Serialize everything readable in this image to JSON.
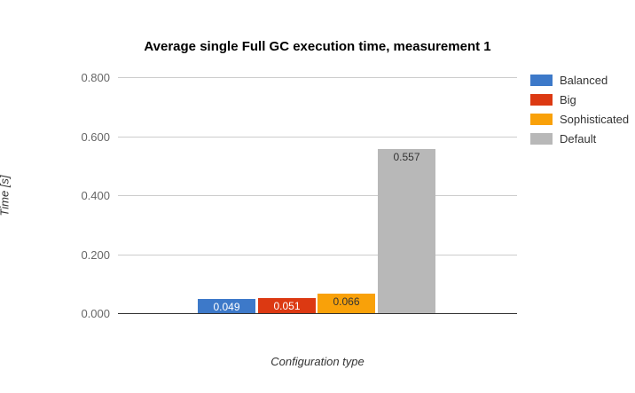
{
  "chart_data": {
    "type": "bar",
    "title": "Average single Full GC execution time, measurement 1",
    "xlabel": "Configuration type",
    "ylabel": "Time [s]",
    "ylim": [
      0,
      0.8
    ],
    "yticks": [
      0,
      0.2,
      0.4,
      0.6,
      0.8
    ],
    "ytick_labels": [
      "0.000",
      "0.200",
      "0.400",
      "0.600",
      "0.800"
    ],
    "grid": true,
    "grid_color": "#cccccc",
    "axis_line_color": "#333333",
    "tick_text_color": "#666666",
    "legend_position": "right",
    "categories": [
      "Configuration type"
    ],
    "series": [
      {
        "name": "Balanced",
        "value": 0.049,
        "label": "0.049",
        "color": "#3d79c9",
        "label_color": "#ffffff"
      },
      {
        "name": "Big",
        "value": 0.051,
        "label": "0.051",
        "color": "#dc3912",
        "label_color": "#ffffff"
      },
      {
        "name": "Sophisticated",
        "value": 0.066,
        "label": "0.066",
        "color": "#f9a109",
        "label_color": "#333333"
      },
      {
        "name": "Default",
        "value": 0.557,
        "label": "0.557",
        "color": "#b8b8b8",
        "label_color": "#333333"
      }
    ]
  }
}
